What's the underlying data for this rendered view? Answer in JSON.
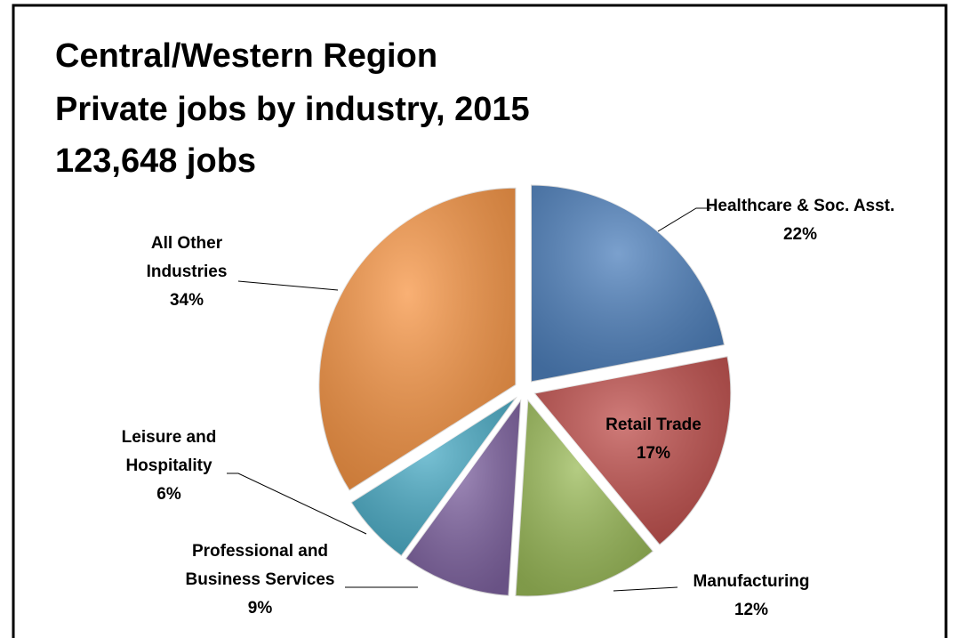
{
  "chart_data": {
    "type": "pie",
    "title": "Central/Western Region",
    "subtitle": "Private jobs by industry, 2015",
    "annotation": "123,648 jobs",
    "categories": [
      "Healthcare & Soc. Asst.",
      "Retail Trade",
      "Manufacturing",
      "Professional and Business Services",
      "Leisure and Hospitality",
      "All Other Industries"
    ],
    "values": [
      22,
      17,
      12,
      9,
      6,
      34
    ],
    "value_labels": [
      "22%",
      "17%",
      "12%",
      "9%",
      "6%",
      "34%"
    ],
    "colors": [
      "#4f81bd",
      "#c0504d",
      "#9bbb59",
      "#8064a2",
      "#4bacc6",
      "#f79646"
    ],
    "exploded": true
  }
}
